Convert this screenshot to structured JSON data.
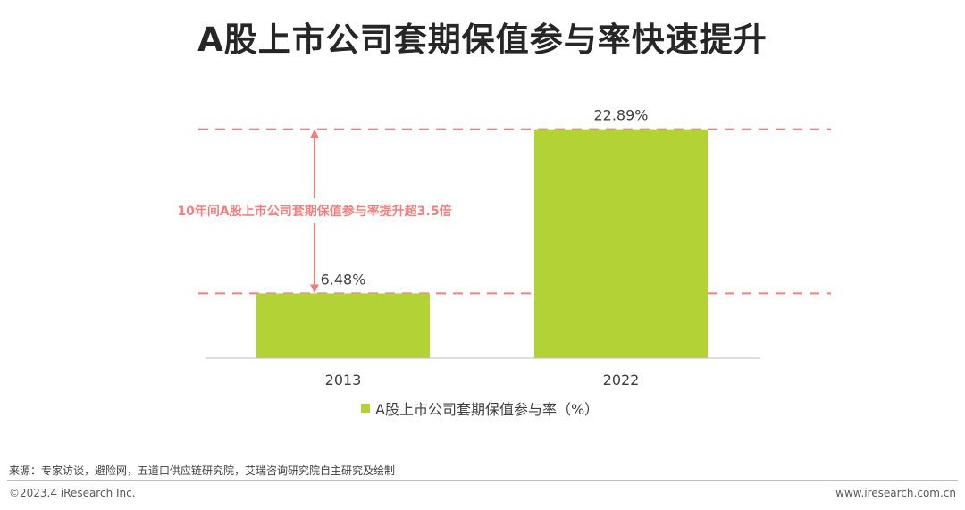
{
  "title": "A股上市公司套期保值参与率快速提升",
  "chart_data": {
    "type": "bar",
    "categories": [
      "2013",
      "2022"
    ],
    "series": [
      {
        "name": "A股上市公司套期保值参与率（%）",
        "values": [
          6.48,
          22.89
        ]
      }
    ],
    "value_labels": [
      "6.48%",
      "22.89%"
    ],
    "ylim": [
      0,
      25
    ],
    "grid": false,
    "legend_position": "bottom",
    "annotation": "10年间A股上市公司套期保值参与率提升超3.5倍",
    "colors": {
      "bar": "#b2d235",
      "annotation": "#f08080",
      "axis": "#bfbfbf"
    }
  },
  "source": "来源：专家访谈，避险网，五道口供应链研究院，艾瑞咨询研究院自主研究及绘制",
  "copyright": "©2023.4 iResearch Inc.",
  "website": "www.iresearch.com.cn"
}
